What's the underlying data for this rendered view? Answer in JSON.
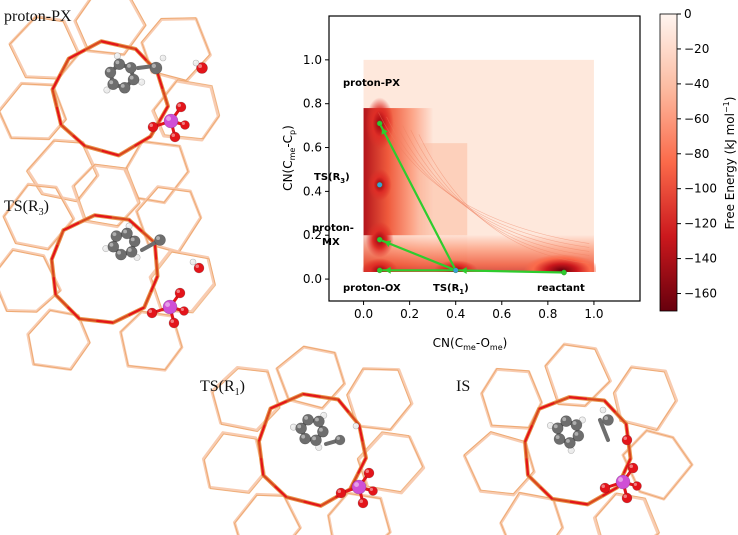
{
  "panels": [
    {
      "id": "proton-px",
      "label_main": "proton-PX",
      "label_sub": ""
    },
    {
      "id": "ts-r3",
      "label_main": "TS(R",
      "label_sub": "3",
      "label_end": ")"
    },
    {
      "id": "ts-r1",
      "label_main": "TS(R",
      "label_sub": "1",
      "label_end": ")"
    },
    {
      "id": "is",
      "label_main": "IS",
      "label_sub": ""
    }
  ],
  "colors": {
    "framework_outer": "#f7c6a8",
    "framework_inner": "#d9461f",
    "framework_mid": "#e8924a",
    "carbon": "#6e6e6e",
    "hydrogen": "#ececec",
    "oxygen": "#e3141a",
    "aluminum": "#cf4fd6",
    "path": "#2ecc2e",
    "point": "#39a0d8"
  },
  "chart_data": {
    "type": "heatmap",
    "xlabel_main": "CN(C",
    "xlabel_sub1": "me",
    "xlabel_mid": "-O",
    "xlabel_sub2": "me",
    "xlabel_end": ")",
    "ylabel_main": "CN(C",
    "ylabel_sub1": "me",
    "ylabel_mid": "-C",
    "ylabel_sub2": "p",
    "ylabel_end": ")",
    "xlim": [
      -0.15,
      1.2
    ],
    "ylim": [
      -0.1,
      1.2
    ],
    "xticks": [
      "0.0",
      "0.2",
      "0.4",
      "0.6",
      "0.8",
      "1.0"
    ],
    "xtick_values": [
      0.0,
      0.2,
      0.4,
      0.6,
      0.8,
      1.0
    ],
    "yticks": [
      "0.0",
      "0.2",
      "0.4",
      "0.6",
      "0.8",
      "1.0"
    ],
    "ytick_values": [
      0.0,
      0.2,
      0.4,
      0.6,
      0.8,
      1.0
    ],
    "colorbar": {
      "label_main": "Free Energy (kJ mol",
      "label_sup": "−1",
      "label_end": ")",
      "range": [
        -170,
        0
      ],
      "ticks": [
        "0",
        "−20",
        "−40",
        "−60",
        "−80",
        "−100",
        "−120",
        "−140",
        "−160"
      ],
      "tick_values": [
        0,
        -20,
        -40,
        -60,
        -80,
        -100,
        -120,
        -140,
        -160
      ]
    },
    "landmarks": [
      {
        "name": "proton-PX",
        "x": 0.07,
        "y": 0.71
      },
      {
        "name": "TS(R3)",
        "x": 0.07,
        "y": 0.43
      },
      {
        "name": "proton-MX",
        "x": 0.07,
        "y": 0.18
      },
      {
        "name": "proton-OX",
        "x": 0.07,
        "y": 0.04
      },
      {
        "name": "TS(R1)",
        "x": 0.4,
        "y": 0.04
      },
      {
        "name": "reactant",
        "x": 0.87,
        "y": 0.03
      }
    ],
    "annotations": [
      {
        "id": "ann-proton-px",
        "text": "proton-PX"
      },
      {
        "id": "ann-ts-r3",
        "text_main": "TS(R",
        "text_sub": "3",
        "text_end": ")"
      },
      {
        "id": "ann-proton",
        "text": "proton-"
      },
      {
        "id": "ann-mx",
        "text": "MX"
      },
      {
        "id": "ann-proton-ox",
        "text": "proton-OX"
      },
      {
        "id": "ann-ts-r1",
        "text_main": "TS(R",
        "text_sub": "1",
        "text_end": ")"
      },
      {
        "id": "ann-reactant",
        "text": "reactant"
      }
    ],
    "paths": [
      {
        "from": "TS(R1)",
        "to": "proton-PX"
      },
      {
        "from": "TS(R1)",
        "to": "proton-MX"
      },
      {
        "from": "TS(R1)",
        "to": "proton-OX"
      },
      {
        "from": "reactant",
        "to": "TS(R1)"
      }
    ]
  }
}
